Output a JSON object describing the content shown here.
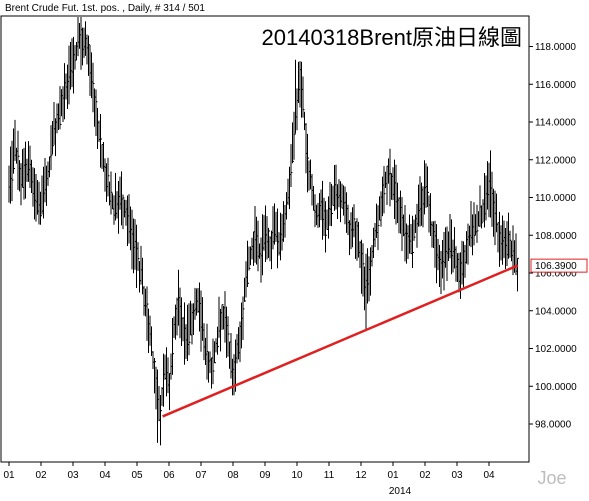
{
  "header": "Brent Crude Fut. 1st. pos. , Daily, # 314 / 501",
  "chart_title": "20140318Brent原油日線圖",
  "watermark": "Joe",
  "chart_data": {
    "type": "ohlc",
    "y_ticks": [
      "118.0000",
      "116.0000",
      "114.0000",
      "112.0000",
      "110.0000",
      "108.0000",
      "106.0000",
      "104.0000",
      "102.0000",
      "100.0000",
      "98.0000"
    ],
    "x_ticks": [
      "01",
      "02",
      "03",
      "04",
      "05",
      "06",
      "07",
      "08",
      "09",
      "10",
      "11",
      "12",
      "01",
      "02",
      "03",
      "04"
    ],
    "x_year_label": "2014",
    "ylim": [
      96.5,
      119.5
    ],
    "last_price_label": "106.3900",
    "last_price": 106.39,
    "trendline": {
      "from": {
        "month": 4.8,
        "price": 98.4
      },
      "to": {
        "month": 15.9,
        "price": 106.4
      },
      "color": "#e02020"
    },
    "price_path": [
      [
        0.0,
        110.5
      ],
      [
        0.2,
        112.5
      ],
      [
        0.4,
        111.0
      ],
      [
        0.6,
        111.8
      ],
      [
        0.8,
        110.0
      ],
      [
        1.0,
        109.5
      ],
      [
        1.2,
        111.0
      ],
      [
        1.4,
        113.5
      ],
      [
        1.6,
        114.5
      ],
      [
        1.8,
        116.0
      ],
      [
        2.0,
        117.0
      ],
      [
        2.2,
        118.5
      ],
      [
        2.35,
        118.2
      ],
      [
        2.5,
        117.5
      ],
      [
        2.7,
        115.0
      ],
      [
        2.9,
        112.5
      ],
      [
        3.1,
        110.5
      ],
      [
        3.3,
        109.5
      ],
      [
        3.5,
        110.0
      ],
      [
        3.7,
        109.0
      ],
      [
        3.9,
        107.5
      ],
      [
        4.1,
        106.0
      ],
      [
        4.3,
        104.0
      ],
      [
        4.5,
        101.5
      ],
      [
        4.62,
        99.5
      ],
      [
        4.72,
        98.2
      ],
      [
        4.8,
        100.0
      ],
      [
        4.9,
        101.0
      ],
      [
        5.0,
        100.0
      ],
      [
        5.15,
        103.0
      ],
      [
        5.3,
        104.5
      ],
      [
        5.45,
        103.0
      ],
      [
        5.6,
        102.5
      ],
      [
        5.75,
        103.8
      ],
      [
        5.9,
        104.5
      ],
      [
        6.05,
        103.0
      ],
      [
        6.2,
        101.5
      ],
      [
        6.35,
        101.0
      ],
      [
        6.5,
        102.5
      ],
      [
        6.65,
        104.0
      ],
      [
        6.8,
        103.0
      ],
      [
        6.95,
        101.0
      ],
      [
        7.0,
        100.5
      ],
      [
        7.1,
        101.5
      ],
      [
        7.25,
        103.0
      ],
      [
        7.4,
        105.5
      ],
      [
        7.55,
        107.0
      ],
      [
        7.7,
        108.0
      ],
      [
        7.85,
        107.0
      ],
      [
        8.0,
        108.0
      ],
      [
        8.15,
        107.5
      ],
      [
        8.3,
        108.5
      ],
      [
        8.45,
        107.5
      ],
      [
        8.6,
        109.0
      ],
      [
        8.75,
        110.5
      ],
      [
        8.9,
        113.0
      ],
      [
        9.0,
        115.0
      ],
      [
        9.1,
        116.5
      ],
      [
        9.2,
        115.0
      ],
      [
        9.3,
        112.0
      ],
      [
        9.45,
        110.5
      ],
      [
        9.6,
        109.0
      ],
      [
        9.75,
        109.5
      ],
      [
        9.9,
        108.5
      ],
      [
        10.05,
        109.5
      ],
      [
        10.2,
        110.5
      ],
      [
        10.35,
        110.0
      ],
      [
        10.5,
        109.5
      ],
      [
        10.65,
        108.0
      ],
      [
        10.8,
        108.5
      ],
      [
        10.95,
        107.5
      ],
      [
        11.05,
        106.0
      ],
      [
        11.15,
        105.5
      ],
      [
        11.25,
        106.0
      ],
      [
        11.4,
        107.5
      ],
      [
        11.55,
        109.0
      ],
      [
        11.7,
        110.5
      ],
      [
        11.85,
        111.5
      ],
      [
        12.0,
        110.5
      ],
      [
        12.15,
        110.0
      ],
      [
        12.3,
        108.5
      ],
      [
        12.45,
        108.0
      ],
      [
        12.6,
        107.5
      ],
      [
        12.75,
        109.0
      ],
      [
        12.9,
        110.0
      ],
      [
        13.05,
        110.5
      ],
      [
        13.2,
        108.5
      ],
      [
        13.35,
        107.0
      ],
      [
        13.5,
        106.5
      ],
      [
        13.65,
        107.0
      ],
      [
        13.8,
        107.5
      ],
      [
        13.95,
        106.5
      ],
      [
        14.1,
        106.0
      ],
      [
        14.25,
        107.0
      ],
      [
        14.4,
        108.0
      ],
      [
        14.55,
        108.5
      ],
      [
        14.7,
        109.0
      ],
      [
        14.85,
        109.5
      ],
      [
        15.0,
        110.5
      ],
      [
        15.15,
        109.5
      ],
      [
        15.3,
        108.0
      ],
      [
        15.45,
        107.5
      ],
      [
        15.6,
        107.5
      ],
      [
        15.75,
        106.8
      ],
      [
        15.9,
        106.39
      ]
    ],
    "highlights": [
      {
        "month": 2.35,
        "high": 119.0
      },
      {
        "month": 4.65,
        "low": 97.0
      },
      {
        "month": 8.95,
        "high": 117.3
      },
      {
        "month": 11.15,
        "low": 103.0
      },
      {
        "month": 15.05,
        "high": 112.5
      }
    ]
  }
}
